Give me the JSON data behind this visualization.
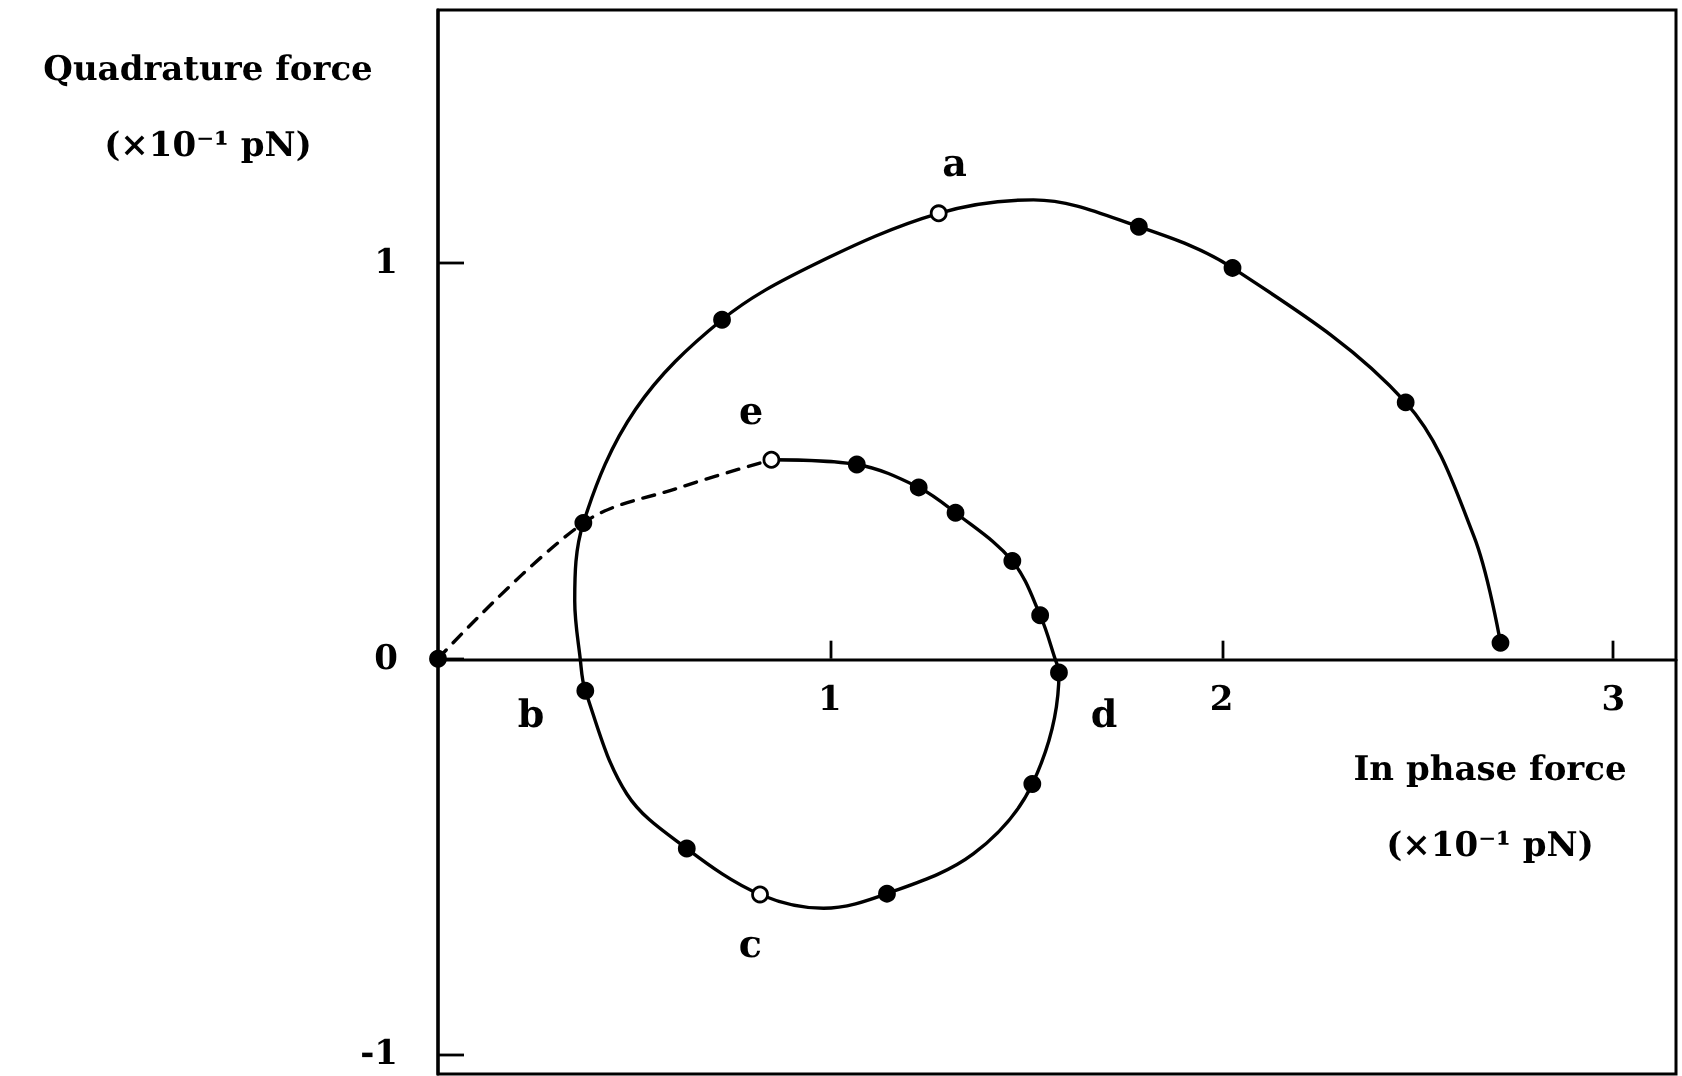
{
  "chart_data": {
    "type": "line",
    "xlabel": "In phase force\n(×10⁻¹ pN)",
    "ylabel": "Quadrature force\n(×10⁻¹ pN)",
    "xlim": [
      0,
      3.16
    ],
    "ylim": [
      -1.05,
      1.64
    ],
    "xticks": [
      1,
      2,
      3
    ],
    "yticks": [
      -1,
      0,
      1
    ],
    "series": [
      {
        "line_style": "solid",
        "marker": "none",
        "color": "#000000",
        "x": [
          0.851,
          1.069,
          1.227,
          1.321,
          1.466,
          1.537,
          1.575,
          1.585,
          1.517,
          1.367,
          1.146,
          0.984,
          0.822,
          0.635,
          0.482,
          0.376,
          0.363,
          0.349,
          0.371,
          0.504,
          0.725,
          0.959,
          1.278,
          1.52,
          1.789,
          2.028,
          2.47,
          2.644,
          2.712
        ],
        "values": [
          0.503,
          0.491,
          0.433,
          0.369,
          0.247,
          0.11,
          0,
          -0.035,
          -0.317,
          -0.493,
          -0.594,
          -0.631,
          -0.596,
          -0.48,
          -0.342,
          -0.081,
          0,
          0.146,
          0.343,
          0.63,
          0.857,
          0.996,
          1.126,
          1.16,
          1.092,
          0.988,
          0.648,
          0.31,
          0.04
        ]
      },
      {
        "line_style": "dashed",
        "marker": "none",
        "color": "#000000",
        "x": [
          0,
          0.371,
          0.618,
          0.851
        ],
        "values": [
          0,
          0.343,
          0.433,
          0.503
        ]
      },
      {
        "type": "scatter",
        "marker": "circle",
        "color": "#000000",
        "x": [
          0,
          1.069,
          1.227,
          1.321,
          1.466,
          1.537,
          1.585,
          1.517,
          1.146,
          0.635,
          0.376,
          0.371,
          0.725,
          1.789,
          2.028,
          2.47,
          2.712
        ],
        "values": [
          0,
          0.491,
          0.433,
          0.369,
          0.247,
          0.11,
          -0.035,
          -0.317,
          -0.594,
          -0.48,
          -0.081,
          0.343,
          0.857,
          1.092,
          0.988,
          0.648,
          0.04
        ]
      },
      {
        "type": "scatter",
        "marker": "circle",
        "color": "#ffffff",
        "x": [
          1.278,
          0.822,
          0.851
        ],
        "values": [
          1.126,
          -0.596,
          0.503
        ]
      }
    ],
    "annotations": [
      {
        "text": "a",
        "x": 1.278,
        "y": 1.126
      },
      {
        "text": "b",
        "x": 0.363,
        "y": 0
      },
      {
        "text": "c",
        "x": 0.822,
        "y": -0.596
      },
      {
        "text": "d",
        "x": 1.575,
        "y": 0
      },
      {
        "text": "e",
        "x": 0.851,
        "y": 0.503
      }
    ]
  }
}
